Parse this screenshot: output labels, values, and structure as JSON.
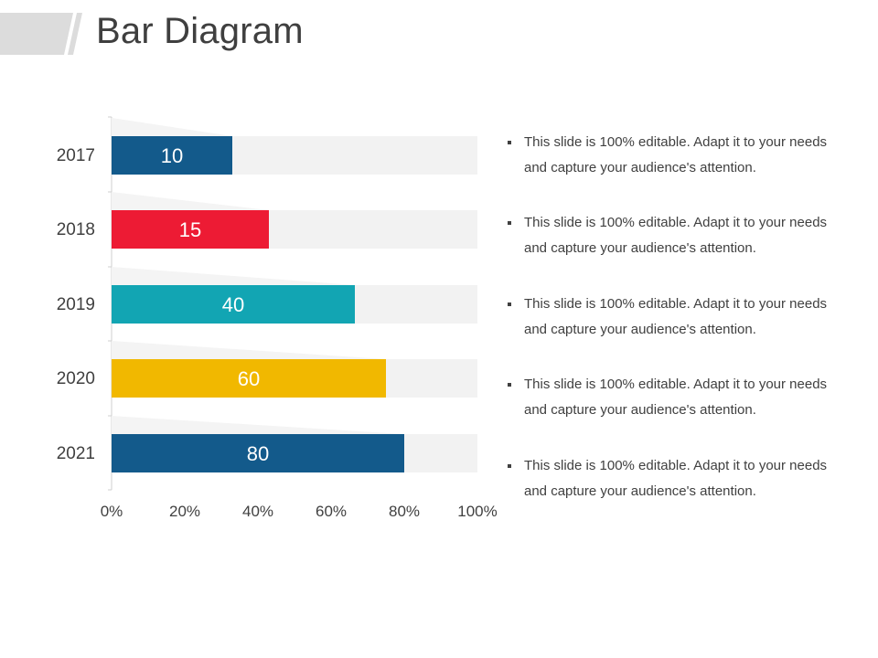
{
  "slide": {
    "title": "Bar Diagram"
  },
  "chart_data": {
    "type": "bar",
    "orientation": "horizontal",
    "categories": [
      "2017",
      "2018",
      "2019",
      "2020",
      "2021"
    ],
    "series": [
      {
        "values": [
          10,
          15,
          40,
          60,
          80
        ],
        "bar_fraction": [
          0.33,
          0.43,
          0.665,
          0.75,
          0.8
        ],
        "colors": [
          "#135a8b",
          "#ed1b34",
          "#12a5b3",
          "#f1b800",
          "#135a8b"
        ]
      }
    ],
    "xticks": [
      "0%",
      "20%",
      "40%",
      "60%",
      "80%",
      "100%"
    ],
    "xlim": [
      0,
      100
    ],
    "track_color": "#f2f2f2",
    "grid": false,
    "legend": "none"
  },
  "bullets": [
    "This slide is 100% editable. Adapt it to your needs and capture your audience's attention.",
    "This slide is 100% editable. Adapt it to your needs and capture your audience's attention.",
    "This slide is 100% editable. Adapt it to your needs and capture your audience's attention.",
    "This slide is 100% editable. Adapt it to your needs and capture your audience's attention.",
    "This slide is 100% editable. Adapt it to your needs and capture your audience's attention."
  ]
}
